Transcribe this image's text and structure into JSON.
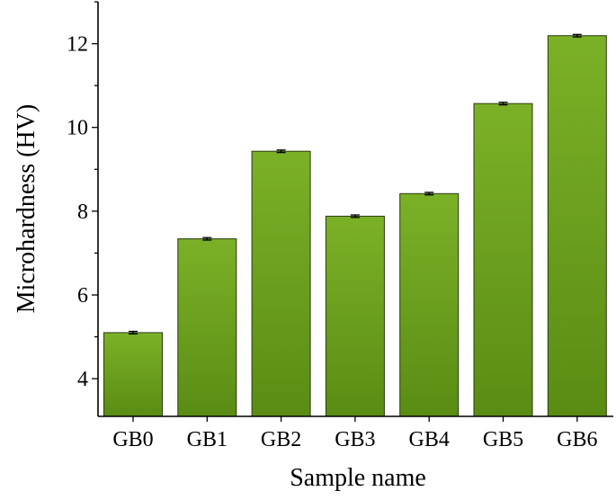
{
  "chart_data": {
    "type": "bar",
    "xlabel": "Sample name",
    "ylabel": "Microhardness (HV)",
    "categories": [
      "GB0",
      "GB1",
      "GB2",
      "GB3",
      "GB4",
      "GB5",
      "GB6"
    ],
    "values": [
      5.1,
      7.34,
      9.43,
      7.88,
      8.42,
      10.57,
      12.19
    ],
    "errors": [
      0.03,
      0.03,
      0.03,
      0.03,
      0.03,
      0.03,
      0.03
    ],
    "ylim": [
      3.1,
      13.0
    ],
    "yticks": [
      4,
      6,
      8,
      10,
      12
    ],
    "ytick_labels": [
      "4",
      "6",
      "8",
      "10",
      "12"
    ],
    "grid": false,
    "bar_color": "#6a9a1c"
  }
}
